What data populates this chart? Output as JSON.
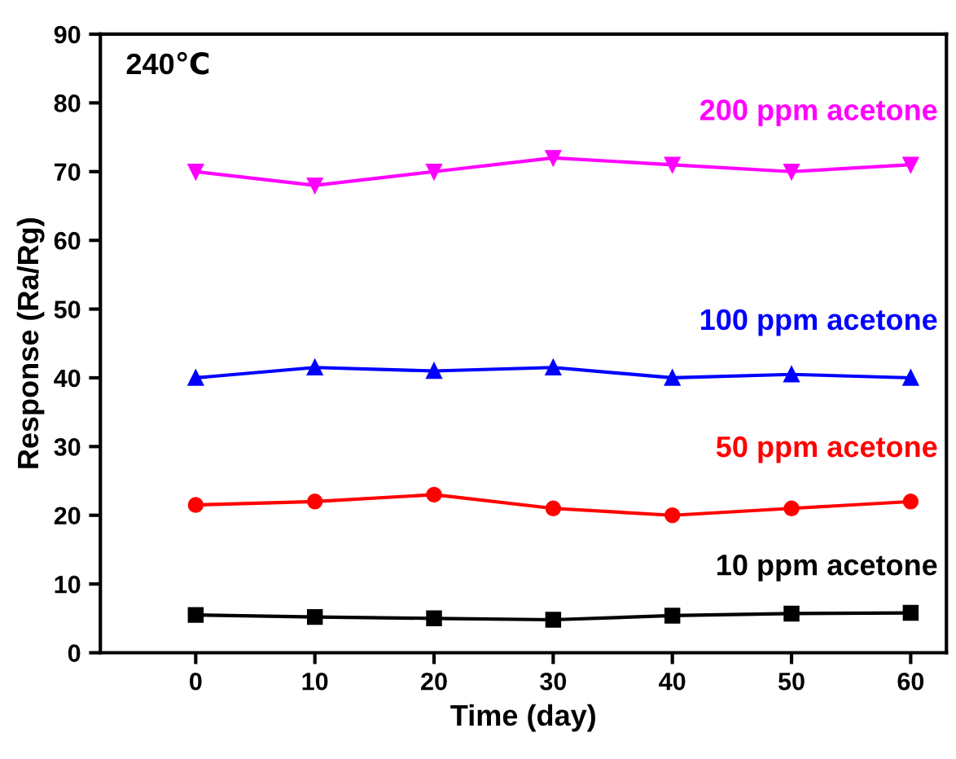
{
  "chart_data": {
    "type": "line",
    "xlabel": "Time (day)",
    "ylabel": "Response (Ra/Rg)",
    "annotations": [
      "240℃"
    ],
    "x": [
      0,
      10,
      20,
      30,
      40,
      50,
      60
    ],
    "xlim": [
      -8,
      63
    ],
    "xticks": [
      0,
      10,
      20,
      30,
      40,
      50,
      60
    ],
    "ylim": [
      0,
      90
    ],
    "yticks": [
      0,
      10,
      20,
      30,
      40,
      50,
      60,
      70,
      80,
      90
    ],
    "grid": false,
    "legend": false,
    "line_style": "solid",
    "series": [
      {
        "name": "10 ppm acetone",
        "color": "#000000",
        "marker": "square",
        "values": [
          5.5,
          5.2,
          5.0,
          4.8,
          5.4,
          5.7,
          5.8
        ]
      },
      {
        "name": "50 ppm acetone",
        "color": "#ff0000",
        "marker": "circle",
        "values": [
          21.5,
          22,
          23,
          21,
          20,
          21,
          22
        ]
      },
      {
        "name": "100 ppm acetone",
        "color": "#0000ff",
        "marker": "triangle",
        "values": [
          40,
          41.5,
          41,
          41.5,
          40,
          40.5,
          40
        ]
      },
      {
        "name": "200 ppm acetone",
        "color": "#ff00ff",
        "marker": "triangle_down",
        "values": [
          70,
          68,
          70,
          72,
          71,
          70,
          71
        ]
      }
    ]
  }
}
